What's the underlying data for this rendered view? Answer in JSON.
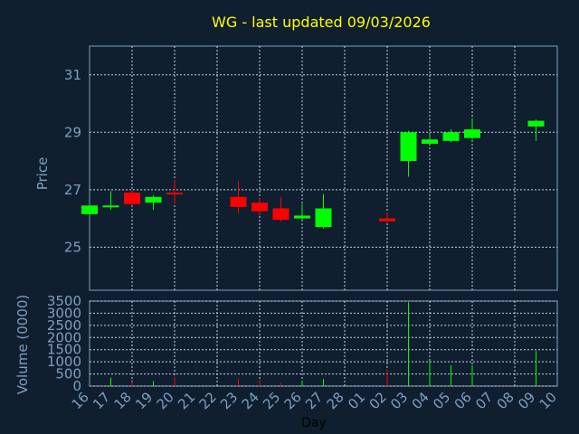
{
  "colors": {
    "background": "#0f1f30",
    "title": "#ffff00",
    "axis_text": "#7f9fbf",
    "grid": "#c8d2dc",
    "up": "#00ff00",
    "down": "#ff0000"
  },
  "chart_data": {
    "type": "candlestick",
    "title": "WG -  last updated 09/03/2026",
    "xlabel": "Day",
    "price_panel": {
      "ylabel": "Price",
      "ylim": [
        23.5,
        32
      ],
      "yticks": [
        25,
        27,
        29,
        31
      ],
      "grid": true
    },
    "volume_panel": {
      "ylabel": "Volume (0000)",
      "ylim": [
        0,
        3500
      ],
      "yticks": [
        0,
        500,
        1000,
        1500,
        2000,
        2500,
        3000,
        3500
      ],
      "grid": true
    },
    "x_ticks": [
      "16",
      "17",
      "18",
      "19",
      "20",
      "21",
      "22",
      "23",
      "24",
      "25",
      "26",
      "27",
      "28",
      "01",
      "02",
      "03",
      "04",
      "05",
      "06",
      "07",
      "08",
      "09",
      "10"
    ],
    "candles": [
      {
        "i": 0,
        "open": 26.15,
        "high": 26.45,
        "low": 26.1,
        "close": 26.45,
        "volume": 0
      },
      {
        "i": 1,
        "open": 26.4,
        "high": 26.95,
        "low": 26.3,
        "close": 26.45,
        "volume": 350
      },
      {
        "i": 2,
        "open": 26.9,
        "high": 26.95,
        "low": 26.45,
        "close": 26.5,
        "volume": 170
      },
      {
        "i": 3,
        "open": 26.55,
        "high": 26.8,
        "low": 26.3,
        "close": 26.75,
        "volume": 210
      },
      {
        "i": 4,
        "open": 26.9,
        "high": 27.35,
        "low": 26.5,
        "close": 26.85,
        "volume": 380
      },
      {
        "i": 7,
        "open": 26.75,
        "high": 27.3,
        "low": 26.2,
        "close": 26.4,
        "volume": 310
      },
      {
        "i": 8,
        "open": 26.55,
        "high": 26.7,
        "low": 26.1,
        "close": 26.25,
        "volume": 240
      },
      {
        "i": 9,
        "open": 26.35,
        "high": 26.75,
        "low": 25.9,
        "close": 25.95,
        "volume": 140
      },
      {
        "i": 10,
        "open": 26.0,
        "high": 26.5,
        "low": 25.95,
        "close": 26.1,
        "volume": 230
      },
      {
        "i": 11,
        "open": 25.7,
        "high": 26.85,
        "low": 25.65,
        "close": 26.35,
        "volume": 300
      },
      {
        "i": 14,
        "open": 26.0,
        "high": 26.2,
        "low": 25.85,
        "close": 25.9,
        "volume": 680
      },
      {
        "i": 15,
        "open": 28.0,
        "high": 29.05,
        "low": 27.45,
        "close": 29.0,
        "volume": 3450
      },
      {
        "i": 16,
        "open": 28.6,
        "high": 28.95,
        "low": 28.6,
        "close": 28.75,
        "volume": 1050
      },
      {
        "i": 17,
        "open": 28.7,
        "high": 29.1,
        "low": 28.65,
        "close": 29.0,
        "volume": 850
      },
      {
        "i": 18,
        "open": 28.8,
        "high": 29.5,
        "low": 28.75,
        "close": 29.1,
        "volume": 850
      },
      {
        "i": 21,
        "open": 29.2,
        "high": 29.45,
        "low": 28.7,
        "close": 29.4,
        "volume": 1450
      }
    ]
  }
}
